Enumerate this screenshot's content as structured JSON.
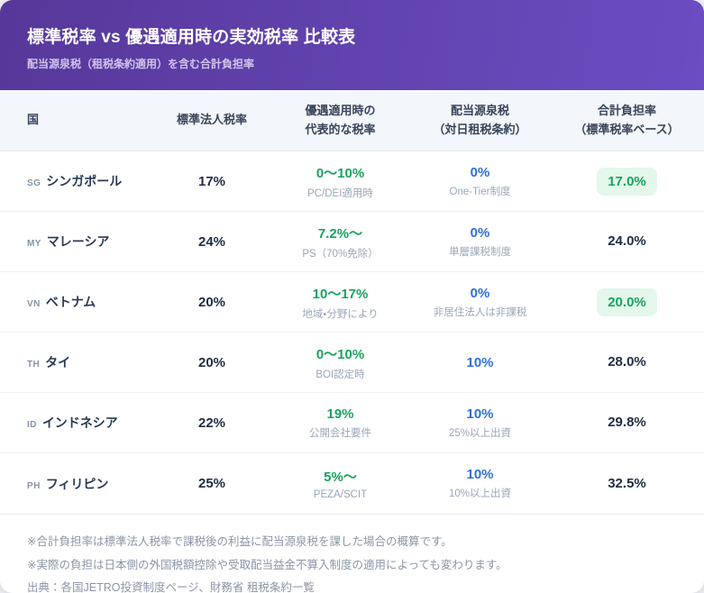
{
  "header": {
    "title": "標準税率 vs 優遇適用時の実効税率 比較表",
    "subtitle": "配当源泉税（租税条約適用）を含む合計負担率"
  },
  "table": {
    "columns": [
      {
        "line1": "国",
        "line2": ""
      },
      {
        "line1": "標準法人税率",
        "line2": ""
      },
      {
        "line1": "優遇適用時の",
        "line2": "代表的な税率"
      },
      {
        "line1": "配当源泉税",
        "line2": "（対日租税条約）"
      },
      {
        "line1": "合計負担率",
        "line2": "（標準税率ベース）"
      }
    ],
    "rows": [
      {
        "code": "SG",
        "country": "シンガポール",
        "standard_rate": "17%",
        "preferential_rate": "0〜10%",
        "preferential_note": "PC/DEI適用時",
        "withholding_rate": "0%",
        "withholding_note": "One-Tier制度",
        "total_rate": "17.0%",
        "total_highlight": true
      },
      {
        "code": "MY",
        "country": "マレーシア",
        "standard_rate": "24%",
        "preferential_rate": "7.2%〜",
        "preferential_note": "PS（70%免除）",
        "withholding_rate": "0%",
        "withholding_note": "単層課税制度",
        "total_rate": "24.0%",
        "total_highlight": false
      },
      {
        "code": "VN",
        "country": "ベトナム",
        "standard_rate": "20%",
        "preferential_rate": "10〜17%",
        "preferential_note": "地域・分野により",
        "withholding_rate": "0%",
        "withholding_note": "非居住法人は非課税",
        "total_rate": "20.0%",
        "total_highlight": true
      },
      {
        "code": "TH",
        "country": "タイ",
        "standard_rate": "20%",
        "preferential_rate": "0〜10%",
        "preferential_note": "BOI認定時",
        "withholding_rate": "10%",
        "withholding_note": "",
        "total_rate": "28.0%",
        "total_highlight": false
      },
      {
        "code": "ID",
        "country": "インドネシア",
        "standard_rate": "22%",
        "preferential_rate": "19%",
        "preferential_note": "公開会社要件",
        "withholding_rate": "10%",
        "withholding_note": "25%以上出資",
        "total_rate": "29.8%",
        "total_highlight": false
      },
      {
        "code": "PH",
        "country": "フィリピン",
        "standard_rate": "25%",
        "preferential_rate": "5%〜",
        "preferential_note": "PEZA/SCIT",
        "withholding_rate": "10%",
        "withholding_note": "10%以上出資",
        "total_rate": "32.5%",
        "total_highlight": false
      }
    ]
  },
  "footer": {
    "notes": [
      "※合計負担率は標準法人税率で課税後の利益に配当源泉税を課した場合の概算です。",
      "※実際の負担は日本側の外国税額控除や受取配当益金不算入制度の適用によっても変わります。",
      "出典：各国JETRO投資制度ページ、財務省 租税条約一覧"
    ]
  },
  "colors": {
    "header_grad_start": "#56389a",
    "header_grad_end": "#6c4dc2",
    "green": "#18a35d",
    "blue": "#2d6fdd",
    "highlight_bg": "#e3f7ea",
    "value_dark": "#1f2d45",
    "note_gray": "#9aa7b8",
    "thead_bg": "#f3f6fa",
    "footer_text": "#8b96a6"
  },
  "chart_data": {
    "type": "table",
    "title": "標準税率 vs 優遇適用時の実効税率 比較表",
    "subtitle": "配当源泉税（租税条約適用）を含む合計負担率",
    "columns": [
      "国",
      "標準法人税率",
      "優遇適用時の代表的な税率",
      "配当源泉税（対日租税条約）",
      "合計負担率（標準税率ベース）"
    ],
    "rows": [
      [
        "SG シンガポール",
        "17%",
        "0〜10%（PC/DEI適用時）",
        "0%（One-Tier制度）",
        "17.0%"
      ],
      [
        "MY マレーシア",
        "24%",
        "7.2%〜（PS（70%免除））",
        "0%（単層課税制度）",
        "24.0%"
      ],
      [
        "VN ベトナム",
        "20%",
        "10〜17%（地域・分野により）",
        "0%（非居住法人は非課税）",
        "20.0%"
      ],
      [
        "TH タイ",
        "20%",
        "0〜10%（BOI認定時）",
        "10%",
        "28.0%"
      ],
      [
        "ID インドネシア",
        "22%",
        "19%（公開会社要件）",
        "10%（25%以上出資）",
        "29.8%"
      ],
      [
        "PH フィリピン",
        "25%",
        "5%〜（PEZA/SCIT）",
        "10%（10%以上出資）",
        "32.5%"
      ]
    ],
    "highlighted_totals": [
      "17.0%",
      "20.0%"
    ],
    "standard_rates_pct": [
      17,
      24,
      20,
      20,
      22,
      25
    ],
    "total_burden_pct": [
      17.0,
      24.0,
      20.0,
      28.0,
      29.8,
      32.5
    ]
  }
}
